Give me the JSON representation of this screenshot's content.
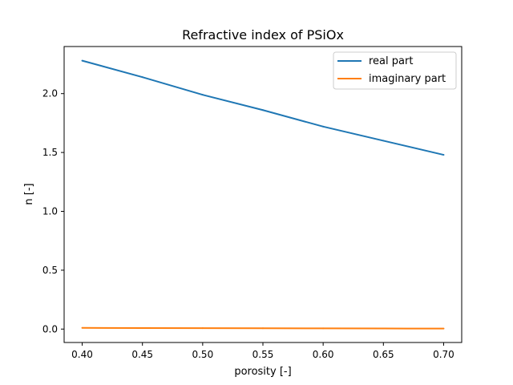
{
  "chart_data": {
    "type": "line",
    "title": "Refractive index of PSiOx",
    "xlabel": "porosity [-]",
    "ylabel": "n [-]",
    "xlim": [
      0.385,
      0.715
    ],
    "ylim": [
      -0.114,
      2.4
    ],
    "xticks": [
      0.4,
      0.45,
      0.5,
      0.55,
      0.6,
      0.65,
      0.7
    ],
    "xtick_labels": [
      "0.40",
      "0.45",
      "0.50",
      "0.55",
      "0.60",
      "0.65",
      "0.70"
    ],
    "yticks": [
      0.0,
      0.5,
      1.0,
      1.5,
      2.0
    ],
    "ytick_labels": [
      "0.0",
      "0.5",
      "1.0",
      "1.5",
      "2.0"
    ],
    "grid": false,
    "legend_position": "top-right",
    "x": [
      0.4,
      0.45,
      0.5,
      0.55,
      0.6,
      0.65,
      0.7
    ],
    "series": [
      {
        "name": "real part",
        "color": "#1f77b4",
        "values": [
          2.28,
          2.14,
          1.99,
          1.86,
          1.72,
          1.6,
          1.48
        ]
      },
      {
        "name": "imaginary part",
        "color": "#ff7f0e",
        "values": [
          0.01,
          0.009,
          0.008,
          0.007,
          0.006,
          0.005,
          0.004
        ]
      }
    ]
  }
}
